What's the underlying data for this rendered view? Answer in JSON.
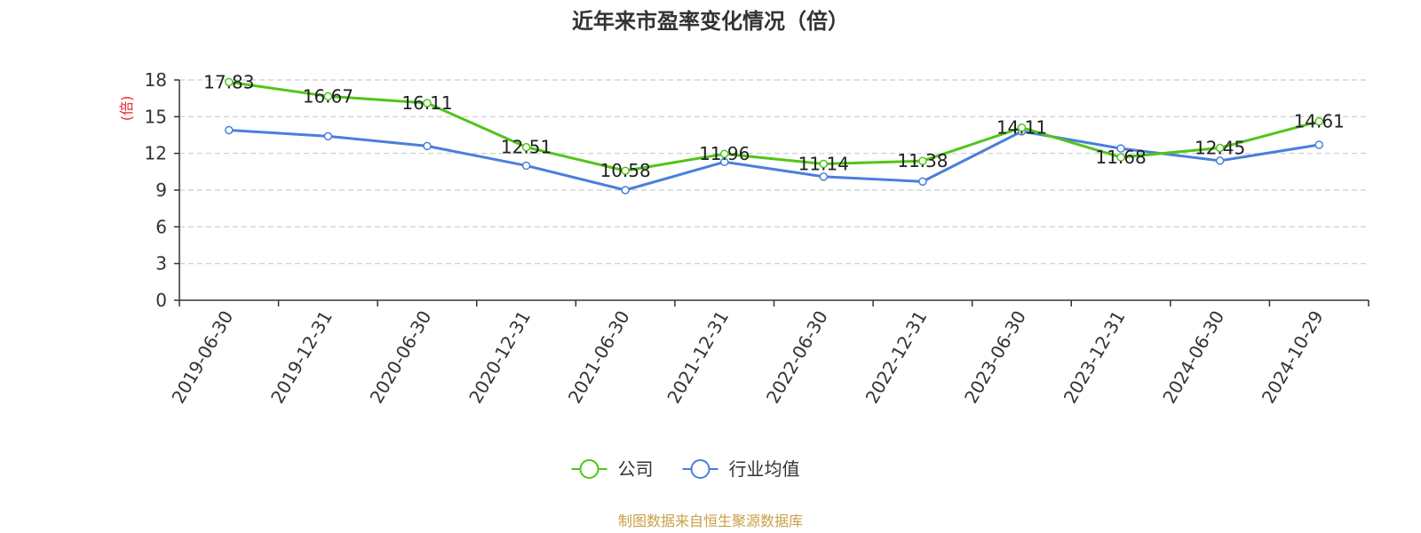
{
  "chart_data": {
    "type": "line",
    "title": "近年来市盈率变化情况（倍）",
    "ylabel": "(倍)",
    "xlabel": "",
    "categories": [
      "2019-06-30",
      "2019-12-31",
      "2020-06-30",
      "2020-12-31",
      "2021-06-30",
      "2021-12-31",
      "2022-06-30",
      "2022-12-31",
      "2023-06-30",
      "2023-12-31",
      "2024-06-30",
      "2024-10-29"
    ],
    "series": [
      {
        "name": "公司",
        "values": [
          17.83,
          16.67,
          16.11,
          12.51,
          10.58,
          11.96,
          11.14,
          11.38,
          14.11,
          11.68,
          12.45,
          14.61
        ],
        "data_labels": true
      },
      {
        "name": "行业均值",
        "values": [
          13.9,
          13.4,
          12.6,
          11.0,
          9.0,
          11.3,
          10.1,
          9.7,
          13.8,
          12.4,
          11.4,
          12.7
        ],
        "data_labels": false
      }
    ],
    "ylim": [
      0,
      18
    ],
    "yticks": [
      0,
      3,
      6,
      9,
      12,
      15,
      18
    ],
    "grid": true,
    "legend_position": "bottom-center",
    "colors": {
      "公司": "#52c41a",
      "行业均值": "#4a7fdb",
      "ylabel": "#e8262c",
      "source": "#c9a046",
      "grid": "#cccccc"
    }
  },
  "footer": {
    "source": "制图数据来自恒生聚源数据库"
  }
}
